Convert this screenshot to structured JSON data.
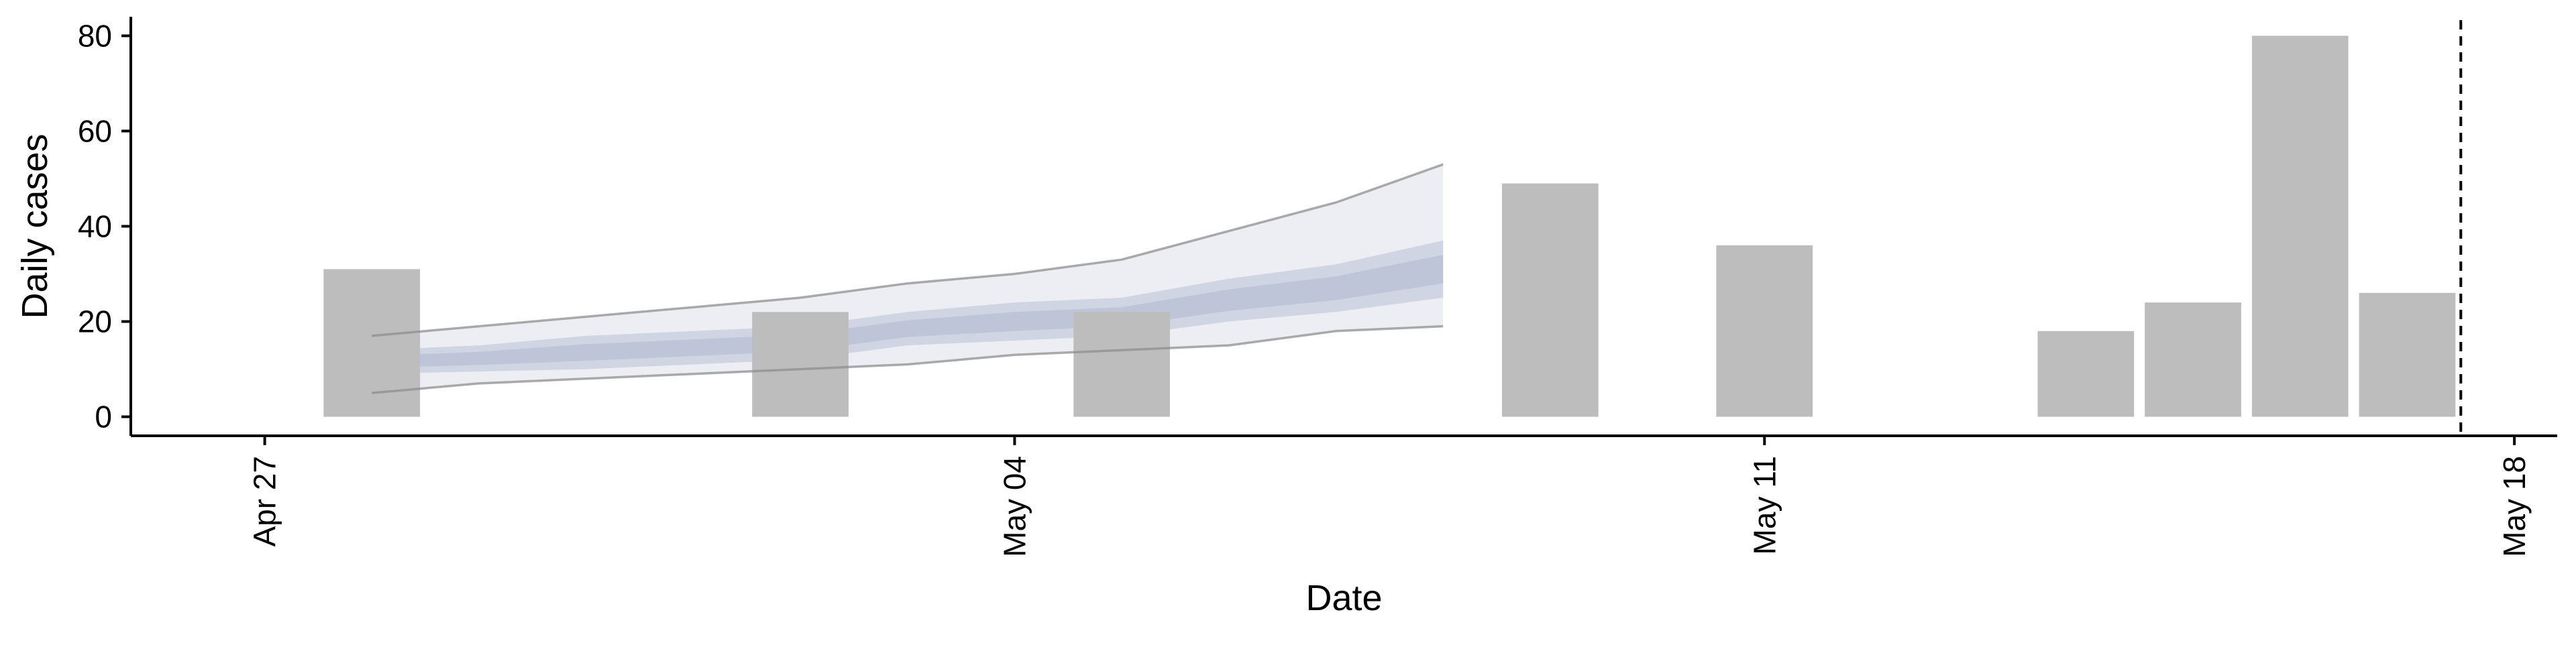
{
  "chart_data": {
    "type": "bar",
    "title": "",
    "xlabel": "Date",
    "ylabel": "Daily cases",
    "x_axis": {
      "type": "date",
      "range": [
        "2020-04-26",
        "2020-05-18"
      ],
      "ticks": [
        {
          "date": "2020-04-27",
          "label": "Apr 27"
        },
        {
          "date": "2020-05-04",
          "label": "May 04"
        },
        {
          "date": "2020-05-11",
          "label": "May 11"
        },
        {
          "date": "2020-05-18",
          "label": "May 18"
        }
      ]
    },
    "y_axis": {
      "range": [
        -4,
        84
      ],
      "ticks": [
        0,
        20,
        40,
        60,
        80
      ]
    },
    "grid": false,
    "bars": [
      {
        "date": "2020-04-28",
        "value": 31
      },
      {
        "date": "2020-05-02",
        "value": 22
      },
      {
        "date": "2020-05-05",
        "value": 22
      },
      {
        "date": "2020-05-09",
        "value": 49
      },
      {
        "date": "2020-05-11",
        "value": 36
      },
      {
        "date": "2020-05-14",
        "value": 18
      },
      {
        "date": "2020-05-15",
        "value": 24
      },
      {
        "date": "2020-05-16",
        "value": 80
      },
      {
        "date": "2020-05-17",
        "value": 26
      }
    ],
    "forecast": {
      "dates": [
        "2020-04-28",
        "2020-04-29",
        "2020-04-30",
        "2020-05-01",
        "2020-05-02",
        "2020-05-03",
        "2020-05-04",
        "2020-05-05",
        "2020-05-06",
        "2020-05-07",
        "2020-05-08"
      ],
      "outer_upper": [
        17,
        19,
        21,
        23,
        25,
        28,
        30,
        33,
        39,
        45,
        53
      ],
      "outer_lower": [
        5,
        7,
        8,
        9,
        10,
        11,
        13,
        14,
        15,
        18,
        19
      ],
      "inner_upper": [
        14,
        15,
        17,
        18,
        19,
        22,
        24,
        25,
        29,
        32,
        37
      ],
      "inner_lower": [
        9,
        9.5,
        10,
        11,
        12,
        15,
        16,
        17,
        20,
        22,
        25
      ]
    },
    "vline": {
      "date": "2020-05-17.5",
      "style": "dashed"
    },
    "colors": {
      "bars": "#bdbdbd",
      "outer_band": "#eceef4",
      "inner_band": "#cfd5e3",
      "inner_core": "#a8b1c9",
      "band_edge_upper": "#8f8f8f",
      "band_edge_lower": "#8f8f8f",
      "axis": "#000000"
    }
  }
}
